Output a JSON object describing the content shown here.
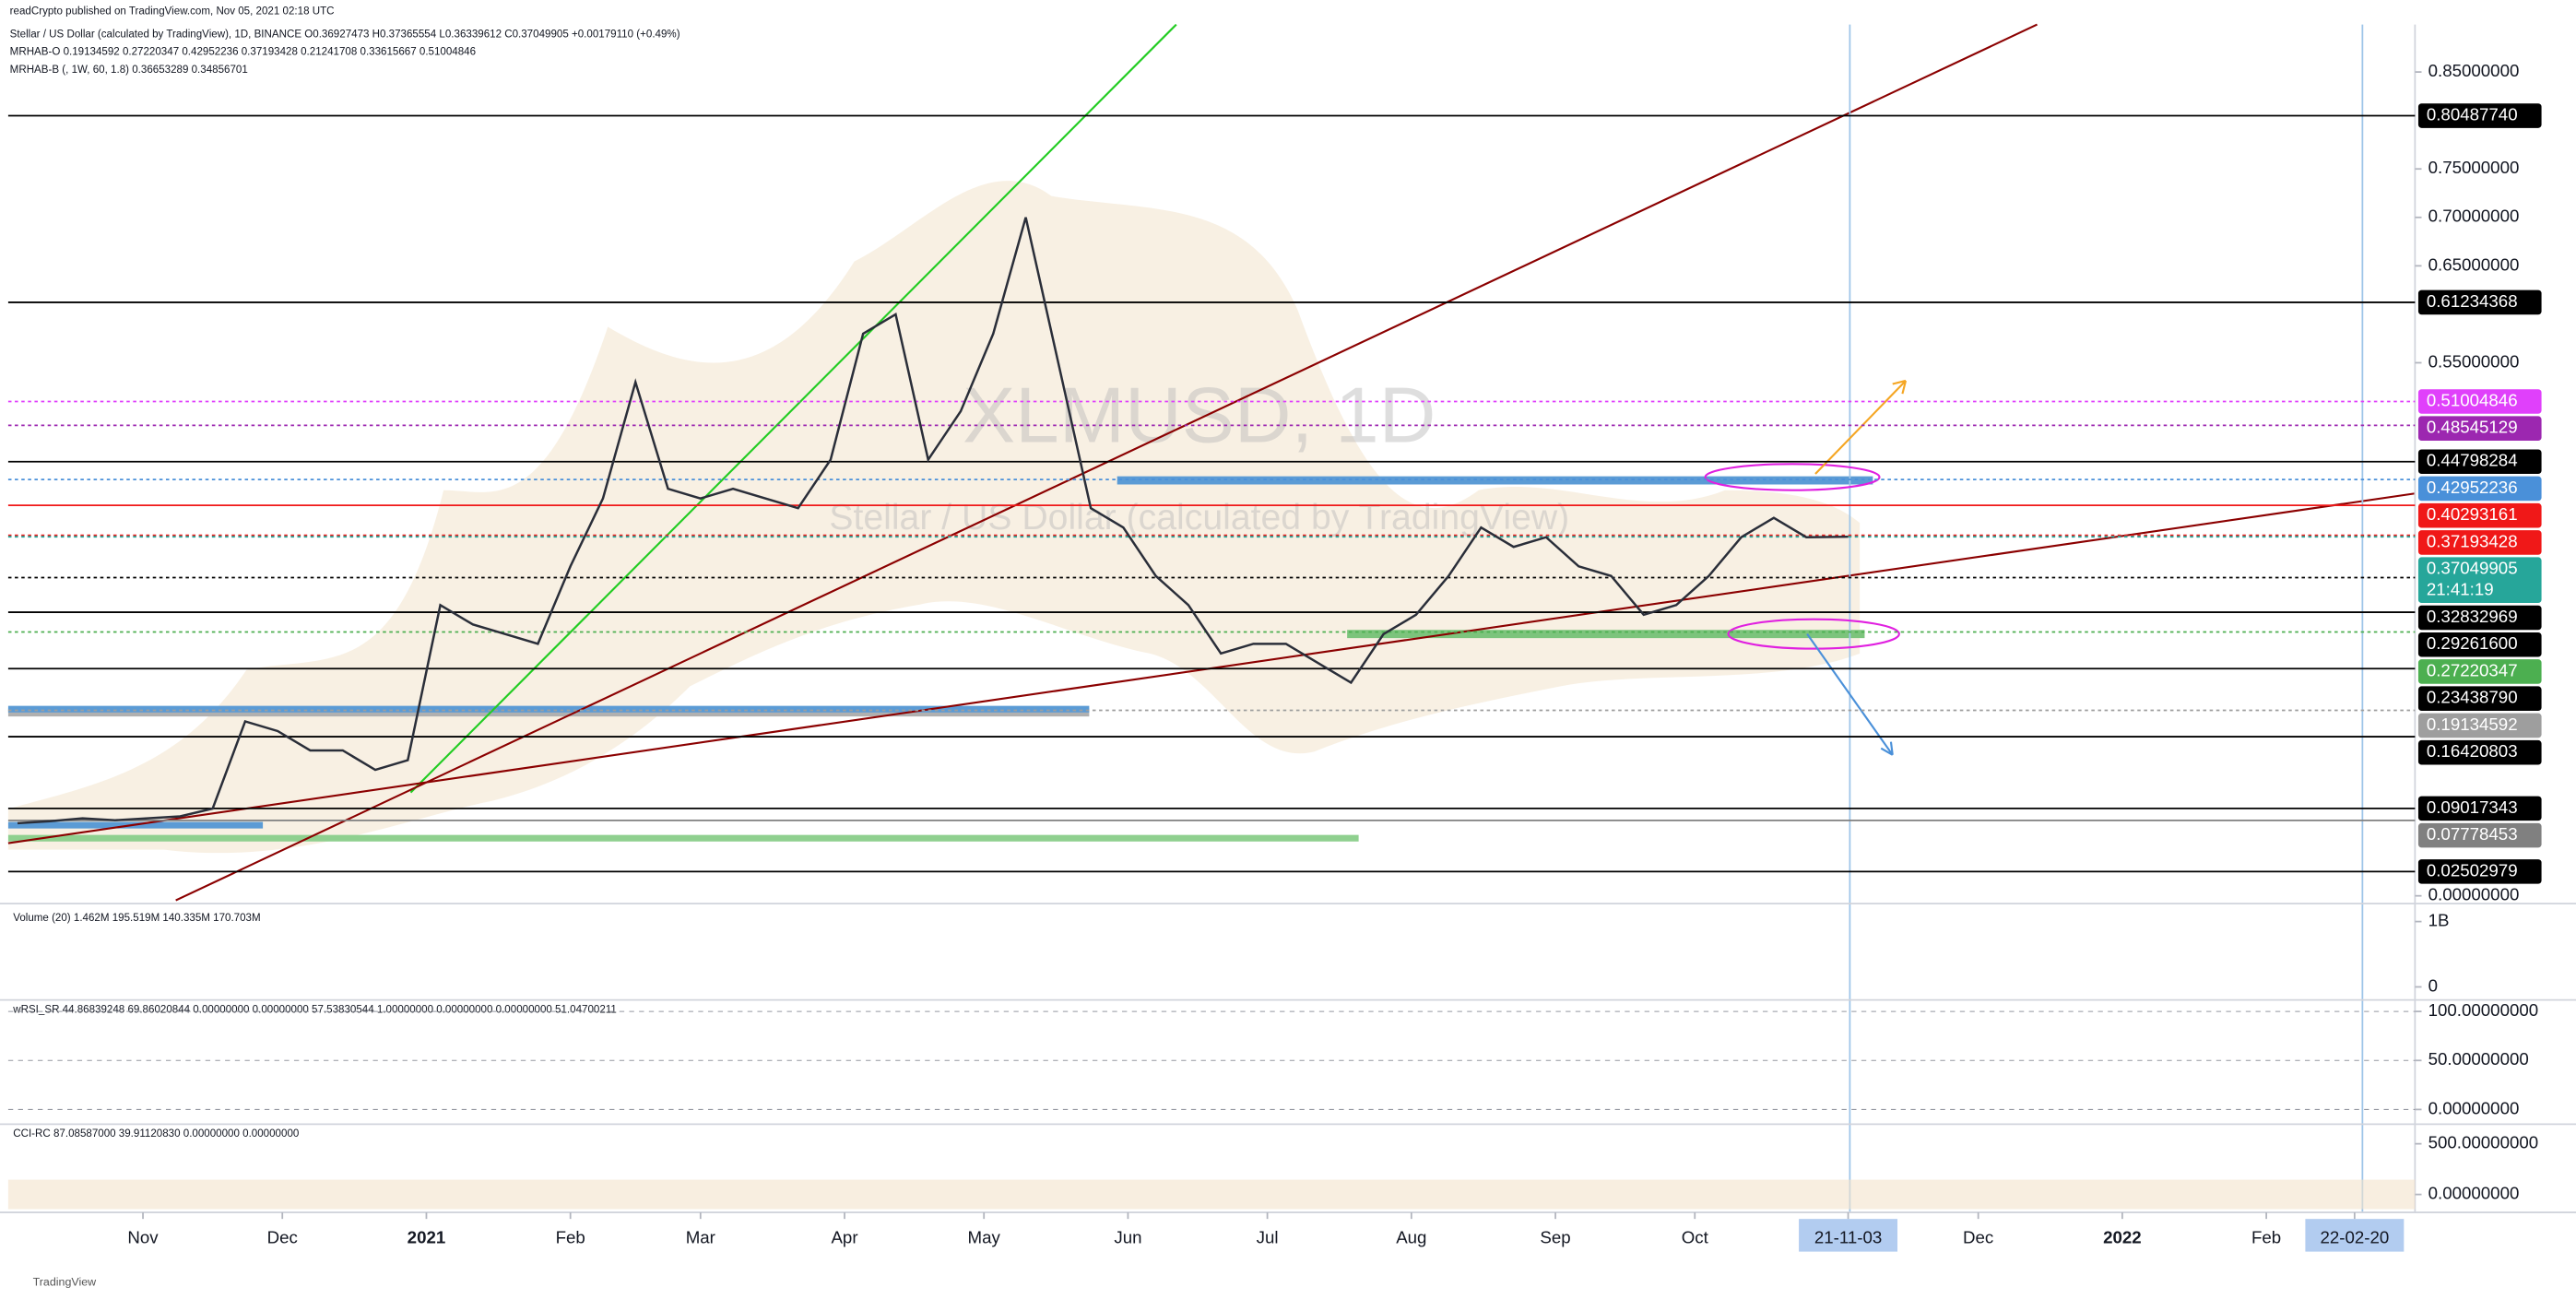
{
  "header": {
    "publisher": "readCrypto published on TradingView.com, Nov 05, 2021 02:18 UTC",
    "symbol_line": "Stellar / US Dollar (calculated by TradingView), 1D, BINANCE  O0.36927473 H0.37365554 L0.36339612 C0.37049905 +0.00179110 (+0.49%)",
    "indicator_1": "MRHAB-O  0.19134592  0.27220347  0.42952236  0.37193428  0.21241708  0.33615667  0.51004846",
    "indicator_2": "MRHAB-B (, 1W, 60, 1.8)  0.36653289  0.34856701"
  },
  "watermark": {
    "symbol": "XLMUSD, 1D",
    "description": "Stellar / US Dollar (calculated by TradingView)"
  },
  "footer": "TradingView",
  "chart_data": {
    "type": "line",
    "color": "#2a2e39",
    "x": [
      "2020-10-05",
      "2020-10-12",
      "2020-10-19",
      "2020-10-26",
      "2020-11-02",
      "2020-11-09",
      "2020-11-16",
      "2020-11-23",
      "2020-11-30",
      "2020-12-07",
      "2020-12-14",
      "2020-12-21",
      "2020-12-28",
      "2021-01-04",
      "2021-01-11",
      "2021-01-18",
      "2021-01-25",
      "2021-02-01",
      "2021-02-08",
      "2021-02-15",
      "2021-02-22",
      "2021-03-01",
      "2021-03-08",
      "2021-03-15",
      "2021-03-22",
      "2021-03-29",
      "2021-04-05",
      "2021-04-12",
      "2021-04-19",
      "2021-04-26",
      "2021-05-03",
      "2021-05-10",
      "2021-05-17",
      "2021-05-24",
      "2021-05-31",
      "2021-06-07",
      "2021-06-14",
      "2021-06-21",
      "2021-06-28",
      "2021-07-05",
      "2021-07-12",
      "2021-07-19",
      "2021-07-26",
      "2021-08-02",
      "2021-08-09",
      "2021-08-16",
      "2021-08-23",
      "2021-08-30",
      "2021-09-06",
      "2021-09-13",
      "2021-09-20",
      "2021-09-27",
      "2021-10-04",
      "2021-10-11",
      "2021-10-18",
      "2021-10-25",
      "2021-11-03"
    ],
    "values": [
      0.075,
      0.077,
      0.08,
      0.078,
      0.08,
      0.082,
      0.09,
      0.18,
      0.17,
      0.15,
      0.15,
      0.13,
      0.14,
      0.3,
      0.28,
      0.27,
      0.26,
      0.34,
      0.41,
      0.53,
      0.42,
      0.41,
      0.42,
      0.41,
      0.4,
      0.45,
      0.58,
      0.6,
      0.45,
      0.5,
      0.58,
      0.7,
      0.55,
      0.4,
      0.38,
      0.33,
      0.3,
      0.25,
      0.26,
      0.26,
      0.24,
      0.22,
      0.27,
      0.29,
      0.33,
      0.38,
      0.36,
      0.37,
      0.34,
      0.33,
      0.29,
      0.3,
      0.33,
      0.37,
      0.39,
      0.37,
      0.37049905
    ],
    "xlim": [
      "2020-10-03",
      "2022-03-05"
    ],
    "xticks": [
      {
        "value": "2020-11-01",
        "label": "Nov"
      },
      {
        "value": "2020-12-01",
        "label": "Dec"
      },
      {
        "value": "2021-01-01",
        "label": "2021"
      },
      {
        "value": "2021-02-01",
        "label": "Feb"
      },
      {
        "value": "2021-03-01",
        "label": "Mar"
      },
      {
        "value": "2021-04-01",
        "label": "Apr"
      },
      {
        "value": "2021-05-01",
        "label": "May"
      },
      {
        "value": "2021-06-01",
        "label": "Jun"
      },
      {
        "value": "2021-07-01",
        "label": "Jul"
      },
      {
        "value": "2021-08-01",
        "label": "Aug"
      },
      {
        "value": "2021-09-01",
        "label": "Sep"
      },
      {
        "value": "2021-10-01",
        "label": "Oct"
      },
      {
        "value": "2021-11-03",
        "label": "21-11-03",
        "highlight": true
      },
      {
        "value": "2021-12-01",
        "label": "Dec"
      },
      {
        "value": "2022-01-01",
        "label": "2022"
      },
      {
        "value": "2022-02-01",
        "label": "Feb"
      },
      {
        "value": "2022-02-20",
        "label": "22-02-20",
        "highlight": true
      }
    ],
    "ylim": [
      -0.008,
      0.899
    ],
    "yticks": [
      {
        "value": 0.85,
        "label": "0.85000000"
      },
      {
        "value": 0.75,
        "label": "0.75000000"
      },
      {
        "value": 0.7,
        "label": "0.70000000"
      },
      {
        "value": 0.65,
        "label": "0.65000000"
      },
      {
        "value": 0.55,
        "label": "0.55000000"
      },
      {
        "value": 0,
        "label": "0.00000000"
      }
    ],
    "levels": [
      {
        "value": 0.8048774,
        "label": "0.80487740",
        "color": "#000000"
      },
      {
        "value": 0.61234368,
        "label": "0.61234368",
        "color": "#000000"
      },
      {
        "value": 0.51004846,
        "label": "0.51004846",
        "color": "#e040fb",
        "dash": true
      },
      {
        "value": 0.48545129,
        "label": "0.48545129",
        "color": "#9c27b0",
        "dash": true
      },
      {
        "value": 0.44798284,
        "label": "0.44798284",
        "color": "#000000"
      },
      {
        "value": 0.42952236,
        "label": "0.42952236",
        "color": "#4a90d9",
        "dash": true
      },
      {
        "value": 0.40293161,
        "label": "0.40293161",
        "color": "#f01818"
      },
      {
        "value": 0.37193428,
        "label": "0.37193428",
        "color": "#f01818",
        "dash": true
      },
      {
        "value": 0.37049905,
        "label": "0.37049905",
        "color": "#26a69a",
        "dash": true,
        "countdown": "21:41:19"
      },
      {
        "value": 0.32832969,
        "label": "0.32832969",
        "color": "#000000",
        "dash": true
      },
      {
        "value": 0.292616,
        "label": "0.29261600",
        "color": "#000000"
      },
      {
        "value": 0.27220347,
        "label": "0.27220347",
        "color": "#4caf50",
        "dash": true
      },
      {
        "value": 0.2343879,
        "label": "0.23438790",
        "color": "#000000"
      },
      {
        "value": 0.19134592,
        "label": "0.19134592",
        "color": "#9e9e9e",
        "dash": true
      },
      {
        "value": 0.16420803,
        "label": "0.16420803",
        "color": "#000000"
      },
      {
        "value": 0.09017343,
        "label": "0.09017343",
        "color": "#000000"
      },
      {
        "value": 0.07778453,
        "label": "0.07778453",
        "color": "#808080"
      },
      {
        "value": 0.02502979,
        "label": "0.02502979",
        "color": "#000000"
      }
    ]
  },
  "panes": [
    {
      "label": "Volume (20)  1.462M  195.519M  140.335M  170.703M",
      "ylim": [
        -200000000,
        1275000000
      ],
      "ticks": [
        {
          "value": 1000000000,
          "label": "1B"
        },
        0
      ]
    },
    {
      "label": "wRSI_SR  44.86839248  69.86020844  0.00000000  0.00000000  57.53830544  1.00000000  0.00000000  0.00000000  51.04700211",
      "ylim": [
        -15,
        111.7
      ],
      "ticks": [
        {
          "value": 100,
          "label": "100.00000000"
        },
        {
          "value": 50,
          "label": "50.00000000"
        },
        {
          "value": 0,
          "label": "0.00000000"
        }
      ]
    },
    {
      "label": "CCI-RC  87.08587000  39.91120830  0.00000000  0.00000000",
      "ylim": [
        -177,
        693.5
      ],
      "ticks": [
        {
          "value": 500,
          "label": "500.00000000"
        },
        {
          "value": 0,
          "label": "0.00000000"
        }
      ]
    }
  ]
}
